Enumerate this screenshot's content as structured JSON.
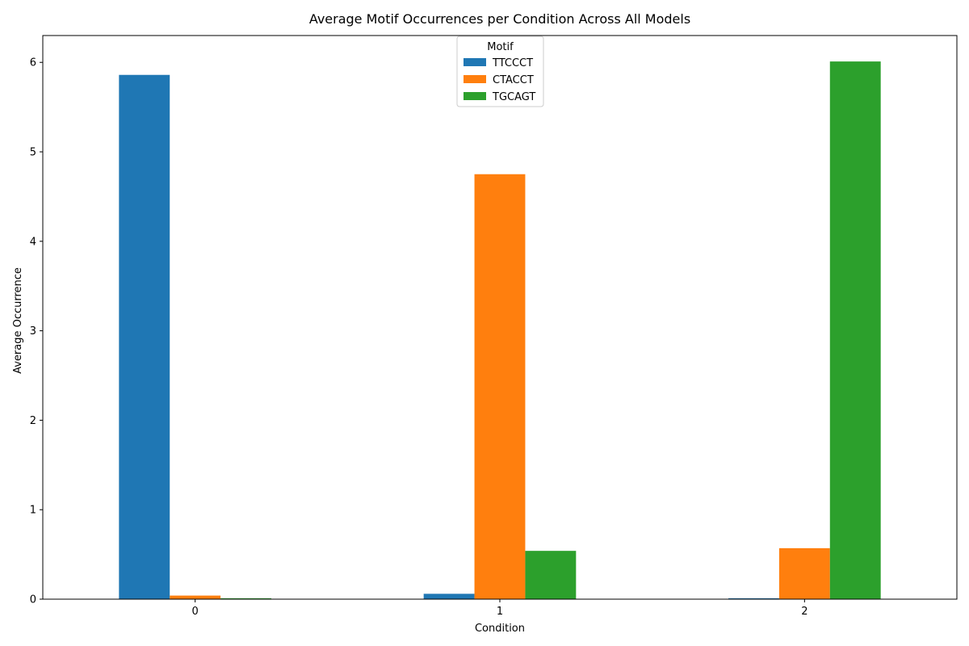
{
  "chart_data": {
    "type": "bar",
    "title": "Average Motif Occurrences per Condition Across All Models",
    "xlabel": "Condition",
    "ylabel": "Average Occurrence",
    "categories": [
      "0",
      "1",
      "2"
    ],
    "ylim": [
      0,
      6.3
    ],
    "yticks": [
      0,
      1,
      2,
      3,
      4,
      5,
      6
    ],
    "grid": false,
    "legend": {
      "title": "Motif",
      "placement": "top-center"
    },
    "series": [
      {
        "name": "TTCCCT",
        "color": "#1f77b4",
        "values": [
          5.86,
          0.06,
          0.01
        ]
      },
      {
        "name": "CTACCT",
        "color": "#ff7f0e",
        "values": [
          0.04,
          4.75,
          0.57
        ]
      },
      {
        "name": "TGCAGT",
        "color": "#2ca02c",
        "values": [
          0.01,
          0.54,
          6.01
        ]
      }
    ]
  }
}
